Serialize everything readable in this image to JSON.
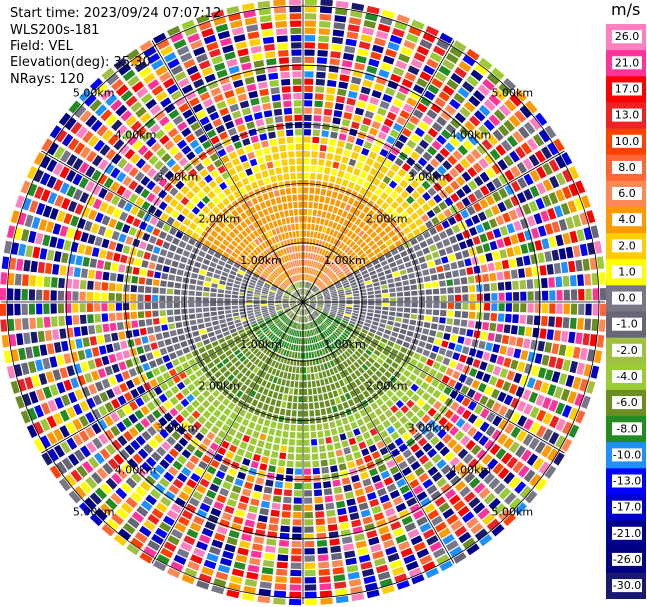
{
  "header": {
    "start_time_label": "Start time: 2023/09/24 07:07:12",
    "instrument": "WLS200s-181",
    "field_label": "Field: VEL",
    "elevation_label": "Elevation(deg): 35.30",
    "nrays_label": "NRays: 120"
  },
  "chart_data": {
    "type": "heatmap",
    "projection": "polar-ppi",
    "field": "VEL",
    "elevation_deg": 35.3,
    "n_rays": 120,
    "range_rings_km": [
      1.0,
      2.0,
      3.0,
      4.0,
      5.0
    ],
    "ring_labels": [
      "1.00km",
      "2.00km",
      "3.00km",
      "4.00km",
      "5.00km"
    ],
    "max_range_km": 5.0,
    "azimuth_lines_deg": [
      0,
      30,
      60,
      90,
      120,
      150,
      180,
      210,
      240,
      270,
      300,
      330
    ],
    "colorbar": {
      "unit": "m/s",
      "tick_labels": [
        "26.0",
        "21.0",
        "17.0",
        "13.0",
        "10.0",
        "8.0",
        "6.0",
        "4.0",
        "2.0",
        "1.0",
        "0.0",
        "-1.0",
        "-2.0",
        "-4.0",
        "-6.0",
        "-8.0",
        "-10.0",
        "-13.0",
        "-17.0",
        "-21.0",
        "-26.0",
        "-30.0"
      ],
      "bins": [
        {
          "min": 26.0,
          "max": 30.0,
          "color": "#ff80c0"
        },
        {
          "min": 21.0,
          "max": 26.0,
          "color": "#ff3399"
        },
        {
          "min": 17.0,
          "max": 21.0,
          "color": "#ff0000"
        },
        {
          "min": 13.0,
          "max": 17.0,
          "color": "#ee2222"
        },
        {
          "min": 10.0,
          "max": 13.0,
          "color": "#ff4000"
        },
        {
          "min": 8.0,
          "max": 10.0,
          "color": "#ff6633"
        },
        {
          "min": 6.0,
          "max": 8.0,
          "color": "#ff8855"
        },
        {
          "min": 4.0,
          "max": 6.0,
          "color": "#ff9900"
        },
        {
          "min": 2.0,
          "max": 4.0,
          "color": "#ffcc00"
        },
        {
          "min": 1.0,
          "max": 2.0,
          "color": "#ffff00"
        },
        {
          "min": 0.0,
          "max": 1.0,
          "color": "#777788"
        },
        {
          "min": -1.0,
          "max": 0.0,
          "color": "#666677"
        },
        {
          "min": -2.0,
          "max": -1.0,
          "color": "#a0c040"
        },
        {
          "min": -4.0,
          "max": -2.0,
          "color": "#99cc33"
        },
        {
          "min": -6.0,
          "max": -4.0,
          "color": "#6b8e23"
        },
        {
          "min": -8.0,
          "max": -6.0,
          "color": "#228b22"
        },
        {
          "min": -10.0,
          "max": -8.0,
          "color": "#1e90ff"
        },
        {
          "min": -13.0,
          "max": -10.0,
          "color": "#0000ff"
        },
        {
          "min": -17.0,
          "max": -13.0,
          "color": "#0000cd"
        },
        {
          "min": -21.0,
          "max": -17.0,
          "color": "#00008b"
        },
        {
          "min": -26.0,
          "max": -21.0,
          "color": "#000080"
        },
        {
          "min": -30.0,
          "max": -26.0,
          "color": "#191970"
        }
      ]
    },
    "velocity_structure": [
      {
        "range_km": [
          0.0,
          0.3
        ],
        "sector": "all",
        "value": -1.0
      },
      {
        "range_km": [
          0.3,
          1.0
        ],
        "sector": "north",
        "value": 6.0
      },
      {
        "range_km": [
          1.0,
          2.0
        ],
        "sector": "north",
        "value": 5.0
      },
      {
        "range_km": [
          2.0,
          2.8
        ],
        "sector": "north",
        "value": 2.5
      },
      {
        "range_km": [
          0.3,
          2.8
        ],
        "sector": "west",
        "value": 0.0
      },
      {
        "range_km": [
          0.3,
          2.8
        ],
        "sector": "east",
        "value": 0.0
      },
      {
        "range_km": [
          0.3,
          1.0
        ],
        "sector": "south",
        "value": -6.5
      },
      {
        "range_km": [
          1.0,
          2.0
        ],
        "sector": "south",
        "value": -5.0
      },
      {
        "range_km": [
          2.0,
          2.8
        ],
        "sector": "south",
        "value": -2.5
      },
      {
        "range_km": [
          2.8,
          5.0
        ],
        "sector": "all",
        "value": "noise"
      }
    ]
  }
}
